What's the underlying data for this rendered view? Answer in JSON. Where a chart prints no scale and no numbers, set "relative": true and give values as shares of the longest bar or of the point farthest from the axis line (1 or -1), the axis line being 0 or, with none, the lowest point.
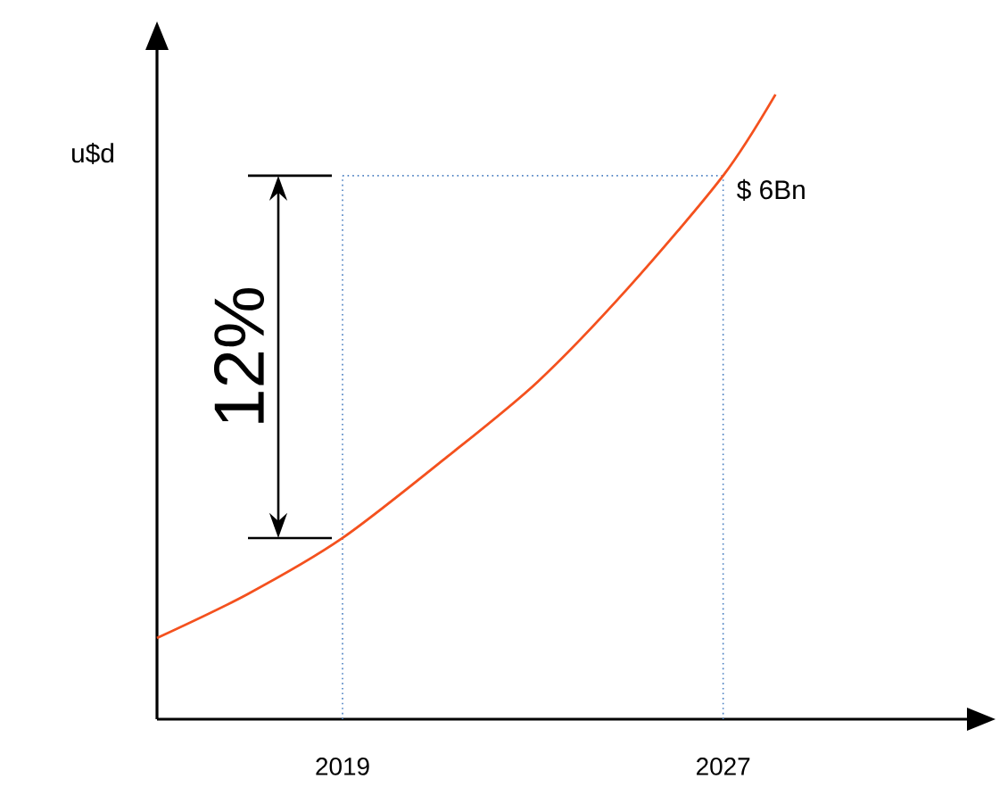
{
  "chart_data": {
    "type": "line",
    "relative": true,
    "ylabel": "u$d",
    "color": "#f4511e",
    "marker": "none",
    "x": [
      2015.1,
      2017.0,
      2019,
      2021.2,
      2023.1,
      2025.0,
      2027,
      2028.1
    ],
    "values": [
      0.13,
      0.2,
      0.29,
      0.42,
      0.54,
      0.69,
      0.87,
      1.0
    ],
    "xlim": [
      2015.1,
      2032.2
    ],
    "xticks": [
      2019,
      2027
    ],
    "ref_lines": [
      {
        "axis": "x",
        "value": 2019,
        "color": "#4a7fc1",
        "line_style": "dotted"
      },
      {
        "axis": "x",
        "value": 2027,
        "color": "#4a7fc1",
        "line_style": "dotted"
      },
      {
        "axis": "y",
        "value": 0.87,
        "color": "#4a7fc1",
        "line_style": "dotted"
      }
    ],
    "annotations": [
      {
        "text": "$ 6Bn",
        "x": 2027,
        "y": 0.87
      },
      "12%"
    ]
  }
}
